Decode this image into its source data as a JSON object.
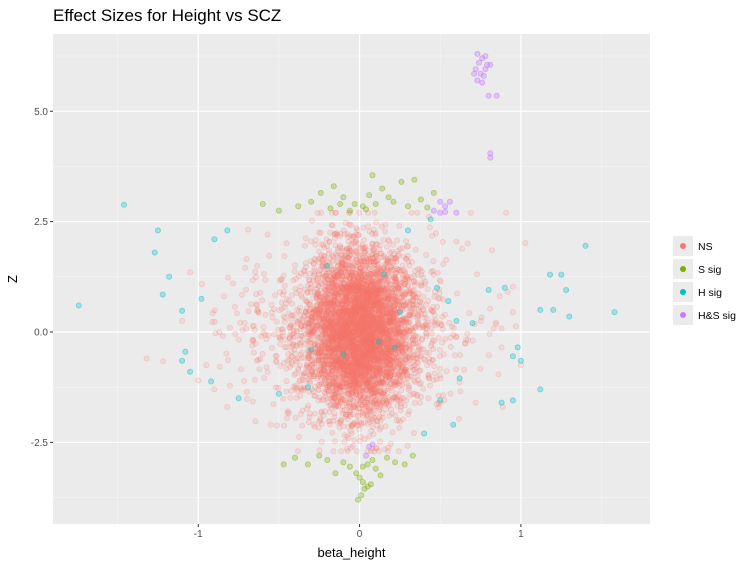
{
  "chart_data": {
    "type": "scatter",
    "title": "Effect Sizes for Height vs SCZ",
    "xlabel": "beta_height",
    "ylabel": "Z",
    "xlim": [
      -1.9,
      1.8
    ],
    "ylim": [
      -4.35,
      6.75
    ],
    "x_ticks": [
      {
        "value": -1,
        "label": "-1"
      },
      {
        "value": 0,
        "label": "0"
      },
      {
        "value": 1,
        "label": "1"
      }
    ],
    "y_ticks": [
      {
        "value": -2.5,
        "label": "-2.5"
      },
      {
        "value": 0,
        "label": "0.0"
      },
      {
        "value": 2.5,
        "label": "2.5"
      },
      {
        "value": 5,
        "label": "5.0"
      }
    ],
    "grid": true,
    "background": "#ebebeb",
    "legend_position": "right",
    "legend": [
      {
        "label": "NS",
        "color": "#f8766d"
      },
      {
        "label": "S sig",
        "color": "#7cae00"
      },
      {
        "label": "H sig",
        "color": "#00bfc4"
      },
      {
        "label": "H&S sig",
        "color": "#c77cff"
      }
    ],
    "series": [
      {
        "name": "NS",
        "color": "#f8766d",
        "opacity": 0.15,
        "generated_cloud": {
          "count": 5200,
          "x_sd": 0.16,
          "y_sd": 0.95,
          "x_range": [
            -1.3,
            1.3
          ],
          "y_range": [
            -2.7,
            2.7
          ]
        },
        "points": [
          [
            -1.05,
            1.35
          ],
          [
            -1.1,
            0.25
          ],
          [
            -0.95,
            -0.75
          ],
          [
            -1.32,
            -0.6
          ],
          [
            -1.0,
            -1.1
          ],
          [
            -0.82,
            -1.7
          ],
          [
            -0.9,
            -1.3
          ],
          [
            0.82,
            1.85
          ],
          [
            0.95,
            0.45
          ],
          [
            1.0,
            -0.75
          ],
          [
            0.72,
            -1.6
          ],
          [
            0.6,
            2.05
          ],
          [
            -0.55,
            -2.1
          ],
          [
            0.88,
            -0.35
          ],
          [
            -0.7,
            1.65
          ]
        ]
      },
      {
        "name": "S sig",
        "color": "#7cae00",
        "opacity": 0.3,
        "points": [
          [
            -0.6,
            2.9
          ],
          [
            -0.5,
            2.75
          ],
          [
            -0.38,
            2.85
          ],
          [
            -0.3,
            2.95
          ],
          [
            -0.24,
            3.15
          ],
          [
            -0.16,
            3.3
          ],
          [
            -0.18,
            2.8
          ],
          [
            -0.1,
            3.05
          ],
          [
            -0.03,
            2.9
          ],
          [
            -0.06,
            2.75
          ],
          [
            0.04,
            2.78
          ],
          [
            0.06,
            3.1
          ],
          [
            0.1,
            2.9
          ],
          [
            0.14,
            3.25
          ],
          [
            0.18,
            3.05
          ],
          [
            0.21,
            2.95
          ],
          [
            0.26,
            3.4
          ],
          [
            0.3,
            2.85
          ],
          [
            0.34,
            3.45
          ],
          [
            0.38,
            3.0
          ],
          [
            0.42,
            2.82
          ],
          [
            0.46,
            3.15
          ],
          [
            0.08,
            3.55
          ],
          [
            -0.12,
            2.9
          ],
          [
            0.02,
            2.85
          ],
          [
            -0.47,
            -3.0
          ],
          [
            -0.4,
            -2.85
          ],
          [
            -0.32,
            -3.0
          ],
          [
            -0.25,
            -2.8
          ],
          [
            -0.2,
            -2.9
          ],
          [
            -0.15,
            -3.2
          ],
          [
            -0.1,
            -2.95
          ],
          [
            -0.06,
            -3.05
          ],
          [
            -0.02,
            -3.2
          ],
          [
            0.0,
            -3.3
          ],
          [
            0.02,
            -3.4
          ],
          [
            0.03,
            -3.55
          ],
          [
            0.01,
            -3.7
          ],
          [
            0.05,
            -3.0
          ],
          [
            0.08,
            -2.9
          ],
          [
            0.1,
            -3.1
          ],
          [
            0.13,
            -3.25
          ],
          [
            0.05,
            -3.5
          ],
          [
            -0.01,
            -3.8
          ],
          [
            0.02,
            -3.05
          ],
          [
            0.07,
            -3.45
          ],
          [
            0.17,
            -2.85
          ],
          [
            0.22,
            -2.95
          ],
          [
            0.28,
            -3.0
          ],
          [
            0.33,
            -2.8
          ]
        ]
      },
      {
        "name": "H sig",
        "color": "#00bfc4",
        "opacity": 0.3,
        "points": [
          [
            -1.46,
            2.88
          ],
          [
            -1.25,
            2.3
          ],
          [
            -1.27,
            1.8
          ],
          [
            -1.18,
            1.25
          ],
          [
            -1.22,
            0.85
          ],
          [
            -1.74,
            0.6
          ],
          [
            -1.1,
            0.48
          ],
          [
            -0.98,
            0.75
          ],
          [
            -1.08,
            -0.45
          ],
          [
            -1.1,
            -0.65
          ],
          [
            -1.05,
            -0.9
          ],
          [
            -0.92,
            -1.12
          ],
          [
            -0.82,
            2.3
          ],
          [
            -0.9,
            2.1
          ],
          [
            -0.75,
            -1.5
          ],
          [
            -0.5,
            -1.4
          ],
          [
            -0.32,
            -1.25
          ],
          [
            -0.3,
            -0.4
          ],
          [
            -0.1,
            -0.5
          ],
          [
            0.12,
            -0.22
          ],
          [
            0.22,
            -0.35
          ],
          [
            0.48,
            1.0
          ],
          [
            0.55,
            0.7
          ],
          [
            0.6,
            0.25
          ],
          [
            0.5,
            -1.55
          ],
          [
            0.62,
            -1.05
          ],
          [
            0.3,
            2.3
          ],
          [
            0.44,
            2.55
          ],
          [
            0.7,
            0.2
          ],
          [
            0.8,
            0.95
          ],
          [
            0.9,
            1.0
          ],
          [
            0.98,
            -0.35
          ],
          [
            0.95,
            -0.55
          ],
          [
            1.0,
            -0.65
          ],
          [
            1.12,
            0.5
          ],
          [
            1.2,
            0.5
          ],
          [
            1.18,
            1.3
          ],
          [
            1.25,
            1.3
          ],
          [
            1.28,
            0.95
          ],
          [
            1.3,
            0.35
          ],
          [
            1.4,
            1.95
          ],
          [
            1.58,
            0.45
          ],
          [
            1.12,
            -1.3
          ],
          [
            0.95,
            -1.55
          ],
          [
            0.88,
            -1.6
          ],
          [
            0.58,
            -2.1
          ],
          [
            0.4,
            -2.3
          ],
          [
            -0.2,
            1.5
          ],
          [
            0.15,
            1.3
          ],
          [
            0.25,
            0.45
          ]
        ]
      },
      {
        "name": "H&S sig",
        "color": "#c77cff",
        "opacity": 0.35,
        "points": [
          [
            0.73,
            6.3
          ],
          [
            0.76,
            6.2
          ],
          [
            0.78,
            6.25
          ],
          [
            0.74,
            6.1
          ],
          [
            0.79,
            6.05
          ],
          [
            0.81,
            6.05
          ],
          [
            0.72,
            5.95
          ],
          [
            0.75,
            5.85
          ],
          [
            0.77,
            5.8
          ],
          [
            0.73,
            5.7
          ],
          [
            0.76,
            5.65
          ],
          [
            0.71,
            5.85
          ],
          [
            0.78,
            5.95
          ],
          [
            0.8,
            5.35
          ],
          [
            0.85,
            5.35
          ],
          [
            0.81,
            4.05
          ],
          [
            0.81,
            3.95
          ],
          [
            0.5,
            2.95
          ],
          [
            0.53,
            2.85
          ],
          [
            0.56,
            2.95
          ],
          [
            0.5,
            2.7
          ],
          [
            0.53,
            2.72
          ],
          [
            0.6,
            2.7
          ],
          [
            0.46,
            2.75
          ],
          [
            0.08,
            -2.55
          ],
          [
            0.06,
            -2.6
          ],
          [
            0.04,
            -2.8
          ]
        ]
      }
    ]
  }
}
